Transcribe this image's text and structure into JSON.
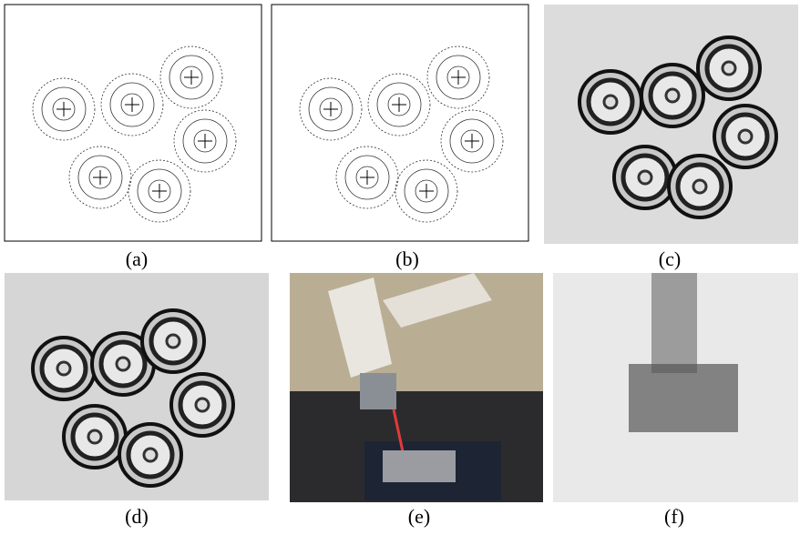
{
  "panels": [
    {
      "label": "(a)"
    },
    {
      "label": "(b)"
    },
    {
      "label": "(c)"
    },
    {
      "label": "(d)"
    },
    {
      "label": "(e)"
    },
    {
      "label": "(f)"
    }
  ]
}
